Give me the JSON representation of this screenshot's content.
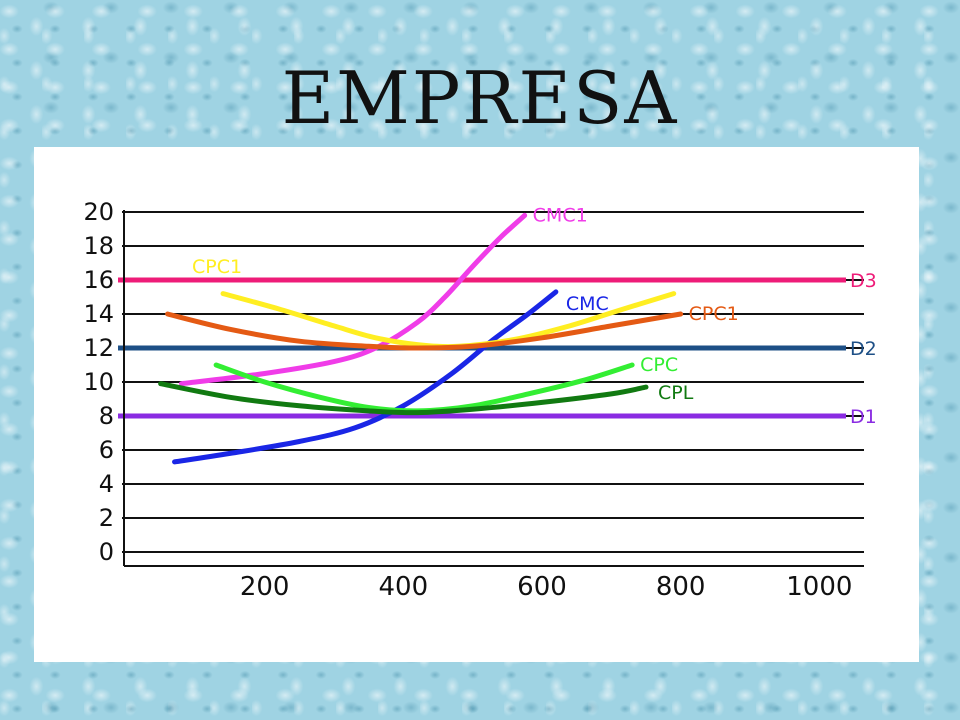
{
  "title": "EMPRESA",
  "chart_data": {
    "type": "line",
    "title": "",
    "xlabel": "",
    "ylabel": "",
    "xlim": [
      0,
      1050
    ],
    "ylim": [
      0,
      20
    ],
    "x_ticks": [
      200,
      400,
      600,
      800,
      1000
    ],
    "x_tick_labels": [
      "200",
      "400",
      "600",
      "800",
      "1000"
    ],
    "y_ticks": [
      0,
      2,
      4,
      6,
      8,
      10,
      12,
      14,
      16,
      18,
      20
    ],
    "y_tick_labels": [
      "0",
      "2",
      "4",
      "6",
      "8",
      "10",
      "12",
      "14",
      "16",
      "18",
      "20"
    ],
    "grid": true,
    "hlines": [
      {
        "name": "D3",
        "y": 16,
        "color": "#ee1c78"
      },
      {
        "name": "D2",
        "y": 12,
        "color": "#1d4f86"
      },
      {
        "name": "D1",
        "y": 8,
        "color": "#8a2be2"
      }
    ],
    "series": [
      {
        "name": "CMC1",
        "color": "#f03ce8",
        "x": [
          80,
          200,
          300,
          360,
          420,
          460,
          500,
          540,
          575
        ],
        "y": [
          9.9,
          10.5,
          11.2,
          12.0,
          13.5,
          15.0,
          16.8,
          18.5,
          19.8
        ]
      },
      {
        "name": "CMC",
        "color": "#1a26e6",
        "x": [
          70,
          150,
          250,
          330,
          400,
          470,
          530,
          580,
          620
        ],
        "y": [
          5.3,
          5.8,
          6.5,
          7.3,
          8.6,
          10.5,
          12.5,
          14.0,
          15.3
        ]
      },
      {
        "name": "CPC1",
        "color": "#ffee22",
        "x": [
          140,
          220,
          300,
          360,
          420,
          480,
          560,
          640,
          710,
          790
        ],
        "y": [
          15.2,
          14.3,
          13.3,
          12.6,
          12.2,
          12.1,
          12.5,
          13.3,
          14.2,
          15.2
        ]
      },
      {
        "name": "CPC1",
        "color": "#e45a14",
        "x": [
          60,
          150,
          250,
          350,
          420,
          500,
          600,
          700,
          800
        ],
        "y": [
          14.0,
          13.1,
          12.4,
          12.1,
          12.0,
          12.1,
          12.6,
          13.3,
          14.0
        ]
      },
      {
        "name": "CPC",
        "color": "#33ee33",
        "x": [
          130,
          200,
          280,
          350,
          420,
          500,
          580,
          660,
          730
        ],
        "y": [
          11.0,
          10.0,
          9.1,
          8.5,
          8.3,
          8.6,
          9.3,
          10.1,
          11.0
        ]
      },
      {
        "name": "CPL",
        "color": "#117a11",
        "x": [
          50,
          150,
          250,
          350,
          420,
          500,
          600,
          700,
          750
        ],
        "y": [
          9.9,
          9.1,
          8.6,
          8.3,
          8.2,
          8.4,
          8.8,
          9.3,
          9.7
        ]
      }
    ]
  }
}
